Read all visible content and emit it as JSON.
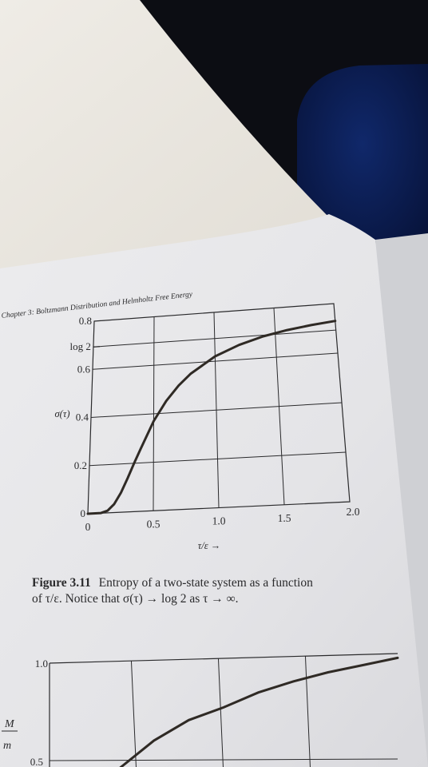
{
  "page": {
    "header": "Chapter 3: Boltzmann Distribution and Helmholtz Free Energy",
    "caption_label": "Figure 3.11",
    "caption_line1": "Entropy of a two-state system as a function",
    "caption_line2": "of τ/ε. Notice that σ(τ) → log 2 as τ → ∞."
  },
  "colors": {
    "desk": "#e9e6df",
    "paper": "#e9e9eb",
    "ink": "#2a2a2c",
    "background": "#0c0d13",
    "chair": "#0b1c4a"
  },
  "chart_data": [
    {
      "type": "line",
      "title": "",
      "ylabel": "σ(τ)",
      "xlabel": "τ/ε →",
      "x_ticks": [
        "0",
        "0.5",
        "1.0",
        "1.5",
        "2.0"
      ],
      "y_ticks": [
        "0",
        "0.2",
        "0.4",
        "0.6",
        "log 2",
        "0.8"
      ],
      "xlim": [
        0,
        2.0
      ],
      "ylim": [
        0,
        0.8
      ],
      "grid": true,
      "series": [
        {
          "x": [
            0,
            0.1,
            0.15,
            0.2,
            0.25,
            0.3,
            0.35,
            0.4,
            0.5,
            0.6,
            0.7,
            0.8,
            1.0,
            1.2,
            1.4,
            1.6,
            1.8,
            2.0
          ],
          "y": [
            0,
            0.0005,
            0.009,
            0.035,
            0.081,
            0.14,
            0.202,
            0.26,
            0.37,
            0.45,
            0.51,
            0.556,
            0.62,
            0.66,
            0.688,
            0.707,
            0.72,
            0.73
          ]
        }
      ]
    },
    {
      "type": "line",
      "ylabel": "M/m",
      "y_ticks": [
        "1.0",
        "0.5"
      ],
      "grid": true,
      "series": [
        {
          "x": [
            0.4,
            0.6,
            0.8,
            1.0,
            1.2,
            1.4,
            1.6,
            1.8,
            2.0
          ],
          "y": [
            0.46,
            0.6,
            0.7,
            0.76,
            0.83,
            0.88,
            0.92,
            0.95,
            0.98
          ]
        }
      ]
    }
  ]
}
